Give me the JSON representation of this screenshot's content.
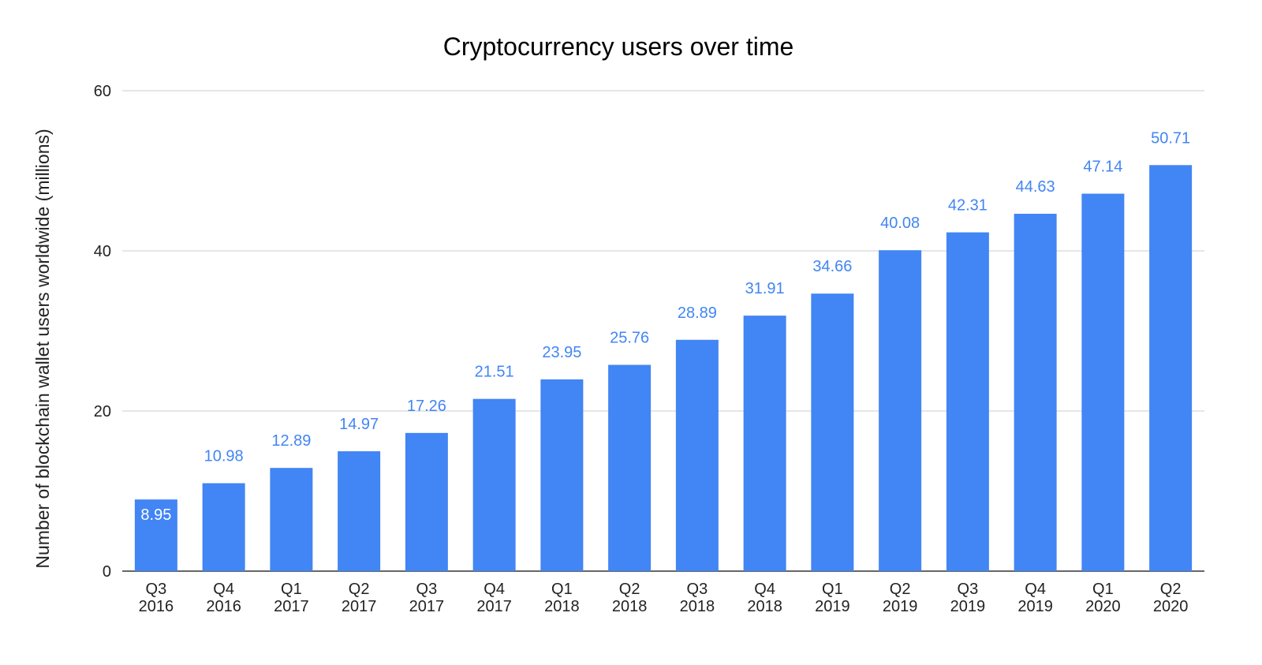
{
  "chart_data": {
    "type": "bar",
    "title": "Cryptocurrency users over time",
    "xlabel": "",
    "ylabel": "Number of blockchain wallet users worldwide (millions)",
    "ylim": [
      0,
      60
    ],
    "yticks": [
      "0",
      "20",
      "40",
      "60"
    ],
    "grid": true,
    "categories": [
      [
        "Q3",
        "2016"
      ],
      [
        "Q4",
        "2016"
      ],
      [
        "Q1",
        "2017"
      ],
      [
        "Q2",
        "2017"
      ],
      [
        "Q3",
        "2017"
      ],
      [
        "Q4",
        "2017"
      ],
      [
        "Q1",
        "2018"
      ],
      [
        "Q2",
        "2018"
      ],
      [
        "Q3",
        "2018"
      ],
      [
        "Q4",
        "2018"
      ],
      [
        "Q1",
        "2019"
      ],
      [
        "Q2",
        "2019"
      ],
      [
        "Q3",
        "2019"
      ],
      [
        "Q4",
        "2019"
      ],
      [
        "Q1",
        "2020"
      ],
      [
        "Q2",
        "2020"
      ]
    ],
    "values": [
      8.95,
      10.98,
      12.89,
      14.97,
      17.26,
      21.51,
      23.95,
      25.76,
      28.89,
      31.91,
      34.66,
      40.08,
      42.31,
      44.63,
      47.14,
      50.71
    ],
    "data_labels": [
      "8.95",
      "10.98",
      "12.89",
      "14.97",
      "17.26",
      "21.51",
      "23.95",
      "25.76",
      "28.89",
      "31.91",
      "34.66",
      "40.08",
      "42.31",
      "44.63",
      "47.14",
      "50.71"
    ],
    "colors": {
      "bar": "#4285f4",
      "label": "#4285f4",
      "label_inside": "#ffffff",
      "grid": "#cccccc",
      "axis": "#333333"
    }
  }
}
